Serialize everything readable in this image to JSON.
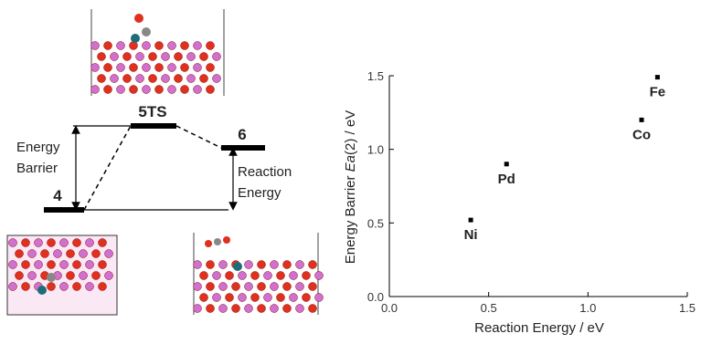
{
  "diagram": {
    "levels": [
      "4",
      "5TS",
      "6"
    ],
    "barrier_label": [
      "Energy",
      "Barrier"
    ],
    "reaction_label": [
      "Reaction",
      "Energy"
    ]
  },
  "chart_data": {
    "type": "scatter",
    "x_label": "Reaction Energy / eV",
    "y_label": [
      "Energy Barrier ",
      "Ea",
      "(2) / eV"
    ],
    "labels": [
      "Ni",
      "Pd",
      "Co",
      "Fe"
    ],
    "x": [
      0.41,
      0.59,
      1.27,
      1.35
    ],
    "values": [
      0.52,
      0.9,
      1.2,
      1.49
    ],
    "color": "#000000",
    "xlim": [
      0,
      1.5
    ],
    "ylim": [
      0,
      1.5
    ],
    "xticks": [
      {
        "value": 0,
        "label": "0.0"
      },
      {
        "value": 0.5,
        "label": "0.5"
      },
      {
        "value": 1,
        "label": "1.0"
      },
      {
        "value": 1.5,
        "label": "1.5"
      }
    ],
    "yticks": [
      {
        "value": 0,
        "label": "0.0"
      },
      {
        "value": 0.5,
        "label": "0.5"
      },
      {
        "value": 1,
        "label": "1.0"
      },
      {
        "value": 1.5,
        "label": "1.5"
      }
    ]
  }
}
